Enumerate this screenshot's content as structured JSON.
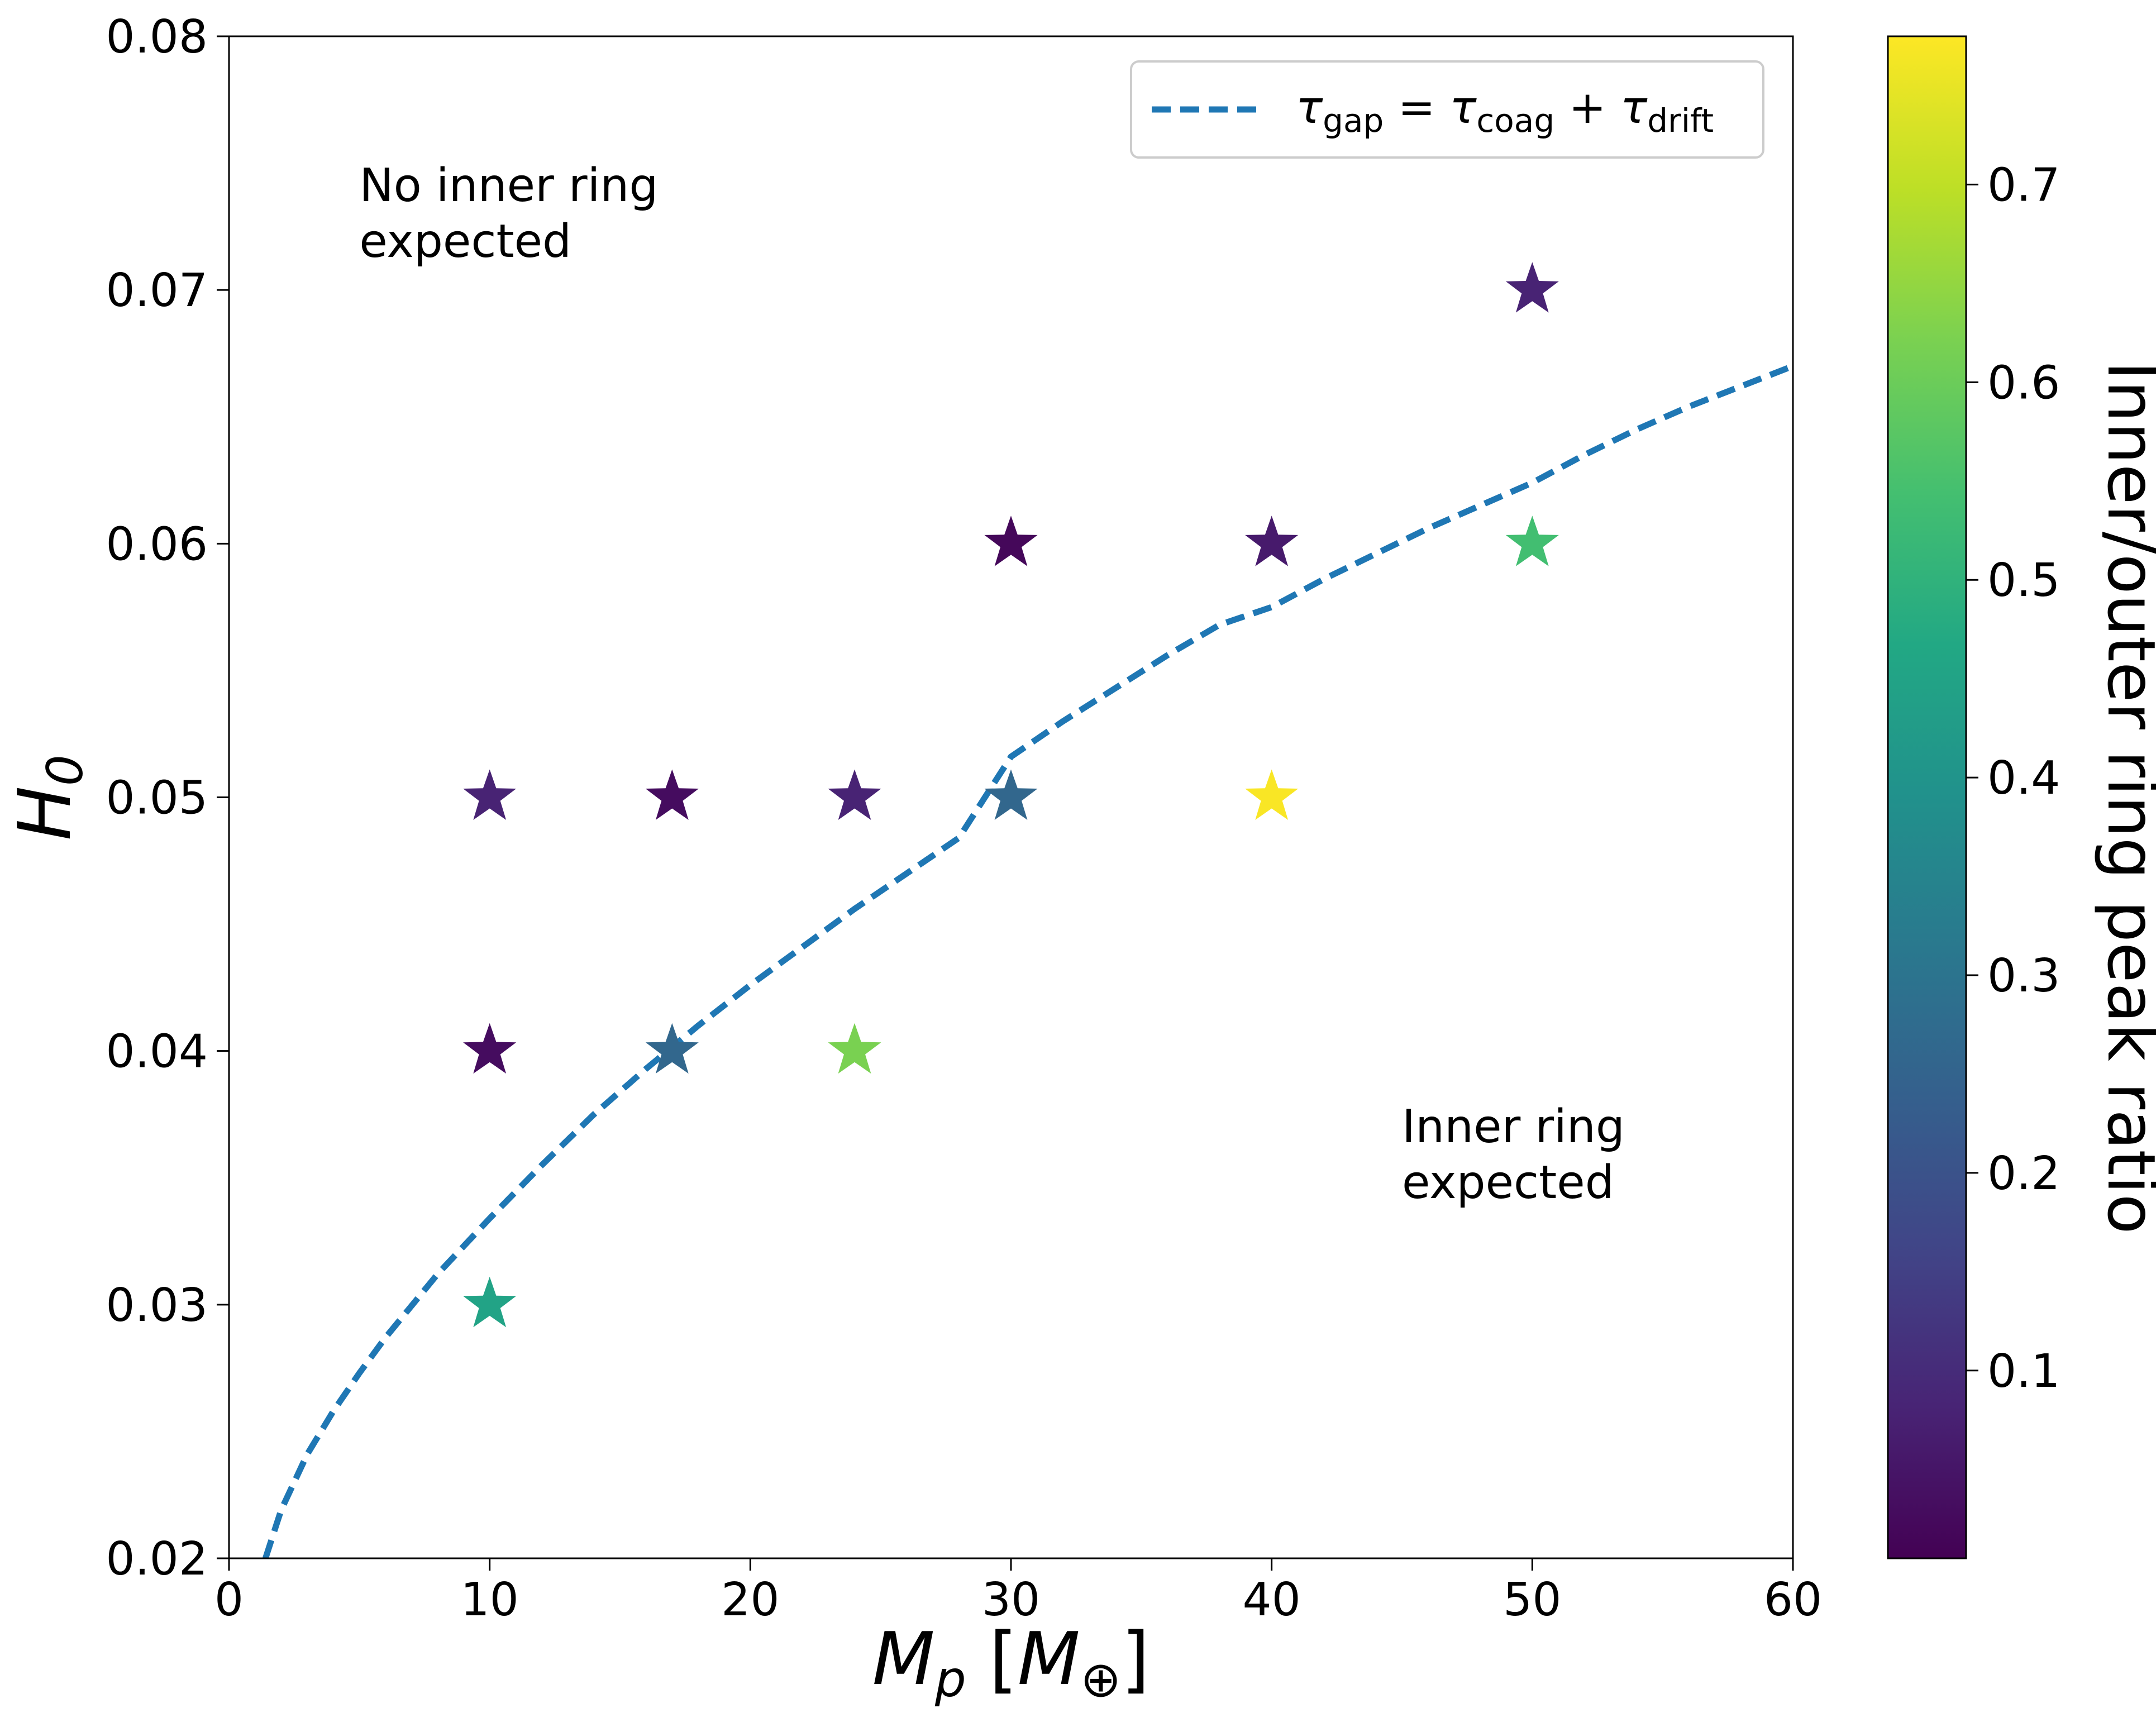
{
  "chart_data": {
    "type": "scatter",
    "title": "",
    "xlabel": {
      "main": "M",
      "sub": "p",
      "bracket_open": "[",
      "unit": "M",
      "unit_sub": "⊕",
      "bracket_close": "]"
    },
    "ylabel": {
      "main": "H",
      "sub": "0"
    },
    "xlim": [
      0,
      60
    ],
    "ylim": [
      0.02,
      0.08
    ],
    "xticks": [
      "0",
      "10",
      "20",
      "30",
      "40",
      "50",
      "60"
    ],
    "xtick_values": [
      0,
      10,
      20,
      30,
      40,
      50,
      60
    ],
    "yticks": [
      "0.02",
      "0.03",
      "0.04",
      "0.05",
      "0.06",
      "0.07",
      "0.08"
    ],
    "ytick_values": [
      0.02,
      0.03,
      0.04,
      0.05,
      0.06,
      0.07,
      0.08
    ],
    "grid": false,
    "marker": "star",
    "points": [
      {
        "x": 10,
        "y": 0.05,
        "ratio": 0.08
      },
      {
        "x": 10,
        "y": 0.04,
        "ratio": 0.03
      },
      {
        "x": 10,
        "y": 0.03,
        "ratio": 0.45
      },
      {
        "x": 17,
        "y": 0.05,
        "ratio": 0.03
      },
      {
        "x": 17,
        "y": 0.04,
        "ratio": 0.26
      },
      {
        "x": 24,
        "y": 0.05,
        "ratio": 0.08
      },
      {
        "x": 24,
        "y": 0.04,
        "ratio": 0.62
      },
      {
        "x": 30,
        "y": 0.06,
        "ratio": 0.02
      },
      {
        "x": 30,
        "y": 0.05,
        "ratio": 0.26
      },
      {
        "x": 40,
        "y": 0.06,
        "ratio": 0.06
      },
      {
        "x": 40,
        "y": 0.05,
        "ratio": 0.77
      },
      {
        "x": 50,
        "y": 0.07,
        "ratio": 0.08
      },
      {
        "x": 50,
        "y": 0.06,
        "ratio": 0.54
      }
    ],
    "curve": {
      "label_main": "τ",
      "label_sub1": "gap",
      "label_eq": " = τ",
      "label_sub2": "coag",
      "label_plus": " + τ",
      "label_sub3": "drift",
      "color": "#1f77b4",
      "style": "dashed",
      "x": [
        1.4,
        2,
        3,
        4,
        5,
        6,
        8,
        10,
        12,
        14,
        16,
        18,
        20,
        22,
        24,
        26,
        28,
        30,
        32,
        34,
        36,
        38,
        40,
        42,
        44,
        46,
        48,
        50,
        52,
        54,
        56,
        58,
        60
      ],
      "y": [
        0.02,
        0.0219,
        0.0241,
        0.0258,
        0.0273,
        0.0287,
        0.0312,
        0.0334,
        0.0355,
        0.0375,
        0.0393,
        0.041,
        0.0426,
        0.0441,
        0.0456,
        0.047,
        0.0484,
        0.0516,
        0.053,
        0.0543,
        0.0556,
        0.0568,
        0.0575,
        0.0586,
        0.0596,
        0.0606,
        0.0615,
        0.0624,
        0.0635,
        0.0645,
        0.0654,
        0.0662,
        0.067
      ]
    },
    "legend_position": "top-right",
    "annotations": [
      {
        "lines": [
          "No inner ring",
          "expected"
        ],
        "x": 5,
        "y": 0.0735
      },
      {
        "lines": [
          "Inner ring",
          "expected"
        ],
        "x": 45,
        "y": 0.0364
      }
    ],
    "colorbar": {
      "label": "Inner/outer ring peak ratio",
      "colormap": "viridis",
      "range": [
        0.005,
        0.775
      ],
      "ticks": [
        "0.1",
        "0.2",
        "0.3",
        "0.4",
        "0.5",
        "0.6",
        "0.7"
      ],
      "tick_values": [
        0.1,
        0.2,
        0.3,
        0.4,
        0.5,
        0.6,
        0.7
      ],
      "colors": [
        "#440154",
        "#482475",
        "#414487",
        "#355f8d",
        "#2a788e",
        "#21918c",
        "#22a884",
        "#44bf70",
        "#7ad151",
        "#bddf26",
        "#fde725"
      ]
    }
  }
}
